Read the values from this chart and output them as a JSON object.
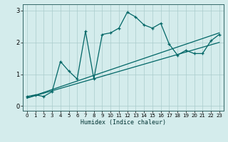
{
  "title": "",
  "xlabel": "Humidex (Indice chaleur)",
  "bg_color": "#d4ecec",
  "grid_color": "#aacccc",
  "line_color": "#006666",
  "xlim": [
    -0.5,
    23.5
  ],
  "ylim": [
    -0.15,
    3.2
  ],
  "xticks": [
    0,
    1,
    2,
    3,
    4,
    5,
    6,
    7,
    8,
    9,
    10,
    11,
    12,
    13,
    14,
    15,
    16,
    17,
    18,
    19,
    20,
    21,
    22,
    23
  ],
  "yticks": [
    0,
    1,
    2,
    3
  ],
  "main_x": [
    0,
    1,
    2,
    3,
    4,
    5,
    6,
    7,
    8,
    9,
    10,
    11,
    12,
    13,
    14,
    15,
    16,
    17,
    18,
    19,
    20,
    21,
    22,
    23
  ],
  "main_y": [
    0.3,
    0.35,
    0.3,
    0.45,
    1.4,
    1.1,
    0.85,
    2.35,
    0.85,
    2.25,
    2.3,
    2.45,
    2.95,
    2.8,
    2.55,
    2.45,
    2.6,
    1.95,
    1.6,
    1.75,
    1.65,
    1.65,
    2.05,
    2.25
  ],
  "trend1_x": [
    0,
    23
  ],
  "trend1_y": [
    0.25,
    2.3
  ],
  "trend2_x": [
    0,
    23
  ],
  "trend2_y": [
    0.25,
    2.0
  ]
}
